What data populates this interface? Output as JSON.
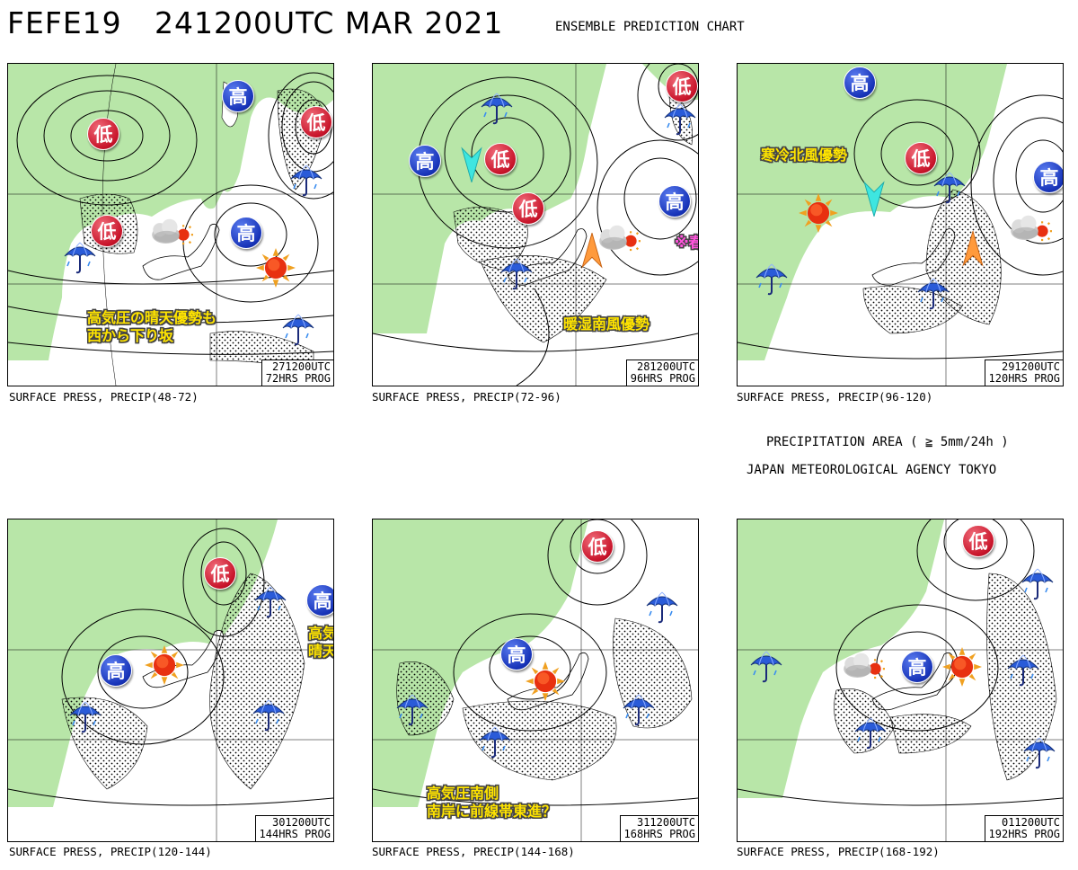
{
  "header": {
    "chart_code": "FEFE19",
    "init_time": "241200UTC MAR 2021",
    "chart_name": "ENSEMBLE PREDICTION CHART"
  },
  "side_info": {
    "precip_area": "PRECIPITATION AREA ( ≧ 5mm/24h )",
    "agency": "JAPAN METEOROLOGICAL AGENCY TOKYO"
  },
  "symbols": {
    "high": "高",
    "low": "低"
  },
  "icons": {
    "umbrella": "umbrella-rain-icon",
    "sun": "sun-icon",
    "cloud_sun": "cloud-sun-icon",
    "wind_north": "cyan-north-wind-arrow-icon",
    "wind_south": "orange-south-wind-arrow-icon"
  },
  "colors": {
    "land": "#b8e6a8",
    "high_symbol": "#1733b8",
    "low_symbol": "#c8142a",
    "annotation": "#ffe400",
    "annotation_alt": "#ff55dd",
    "north_wind": "#3ee6e0",
    "south_wind": "#ff9a3c"
  },
  "panels": [
    {
      "valid": "271200UTC",
      "prog": "72HRS PROG",
      "caption": "SURFACE PRESS, PRECIP(48-72)",
      "annotations": [
        "高気圧の晴天優勢も",
        "西から下り坂"
      ]
    },
    {
      "valid": "281200UTC",
      "prog": "96HRS PROG",
      "caption": "SURFACE PRESS, PRECIP(72-96)",
      "annotations": [
        "暖湿南風優勢",
        "※春の嵐！"
      ]
    },
    {
      "valid": "291200UTC",
      "prog": "120HRS PROG",
      "caption": "SURFACE PRESS, PRECIP(96-120)",
      "annotations": [
        "寒冷北風優勢"
      ]
    },
    {
      "valid": "301200UTC",
      "prog": "144HRS PROG",
      "caption": "SURFACE PRESS, PRECIP(120-144)",
      "annotations": [
        "高気圧北寄りに東進",
        "晴天域も北寄り"
      ]
    },
    {
      "valid": "311200UTC",
      "prog": "168HRS PROG",
      "caption": "SURFACE PRESS, PRECIP(144-168)",
      "annotations": [
        "高気圧南側",
        "南岸に前線帯東進？"
      ]
    },
    {
      "valid": "011200UTC",
      "prog": "192HRS PROG",
      "caption": "SURFACE PRESS, PRECIP(168-192)",
      "annotations": []
    }
  ]
}
